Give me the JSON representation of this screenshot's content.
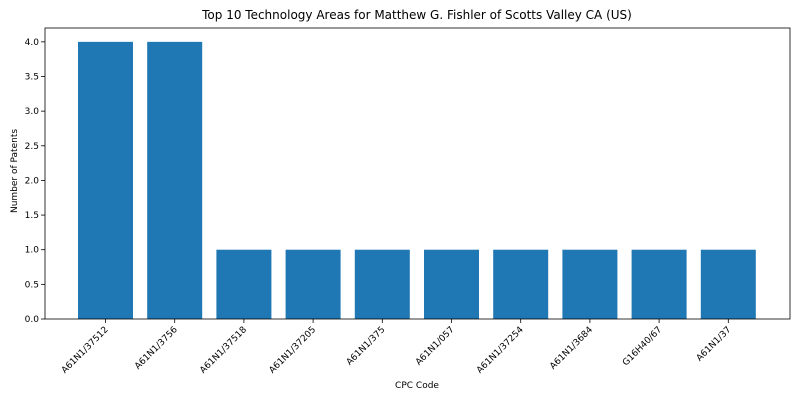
{
  "chart_data": {
    "type": "bar",
    "title": "Top 10 Technology Areas for Matthew G. Fishler of Scotts Valley CA (US)",
    "xlabel": "CPC Code",
    "ylabel": "Number of Patents",
    "categories": [
      "A61N1/37512",
      "A61N1/3756",
      "A61N1/37518",
      "A61N1/37205",
      "A61N1/375",
      "A61N1/057",
      "A61N1/37254",
      "A61N1/3684",
      "G16H40/67",
      "A61N1/37"
    ],
    "values": [
      4,
      4,
      1,
      1,
      1,
      1,
      1,
      1,
      1,
      1
    ],
    "ylim": [
      0,
      4.2
    ],
    "yticks": [
      "0.0",
      "0.5",
      "1.0",
      "1.5",
      "2.0",
      "2.5",
      "3.0",
      "3.5",
      "4.0"
    ],
    "bar_color": "#1f77b4",
    "grid": false
  }
}
